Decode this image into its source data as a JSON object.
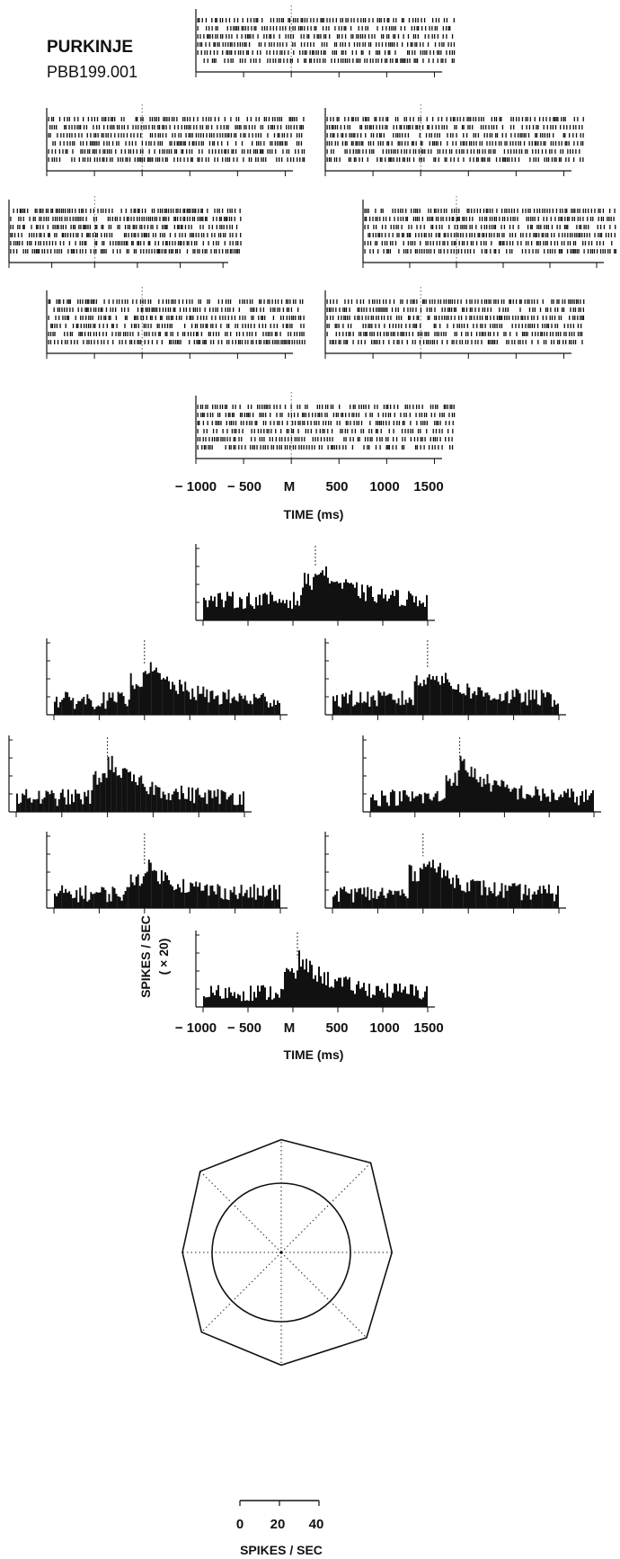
{
  "header": {
    "title": "PURKINJE",
    "cell_id": "PBB199.001"
  },
  "chart_data": [
    {
      "type": "raster",
      "xlabel": "TIME (ms)",
      "x_ticks": [
        "− 1000",
        "− 500",
        "M",
        "500",
        "1000",
        "1500"
      ],
      "x_tick_values": [
        -1000,
        -500,
        0,
        500,
        1000,
        1500
      ],
      "xlim": [
        -1000,
        1750
      ],
      "panels": [
        {
          "direction": "up",
          "trials": 6
        },
        {
          "direction": "up-left",
          "trials": 6
        },
        {
          "direction": "up-right",
          "trials": 6
        },
        {
          "direction": "left",
          "trials": 6
        },
        {
          "direction": "right",
          "trials": 6
        },
        {
          "direction": "down-left",
          "trials": 6
        },
        {
          "direction": "down-right",
          "trials": 6
        },
        {
          "direction": "down",
          "trials": 6
        }
      ]
    },
    {
      "type": "histogram",
      "xlabel": "TIME (ms)",
      "ylabel": "SPIKES / SEC",
      "ylabel_scale": "( × 20)",
      "x_ticks": [
        "− 1000",
        "− 500",
        "M",
        "500",
        "1000",
        "1500"
      ],
      "x_tick_values": [
        -1000,
        -500,
        0,
        500,
        1000,
        1500
      ],
      "xlim": [
        -1000,
        1500
      ],
      "panels": [
        {
          "direction": "up",
          "baseline": 1.4,
          "peak": 3.8,
          "peak_time_ms": 250
        },
        {
          "direction": "up-left",
          "baseline": 1.0,
          "peak": 3.5,
          "peak_time_ms": 0
        },
        {
          "direction": "up-right",
          "baseline": 1.1,
          "peak": 3.2,
          "peak_time_ms": 50
        },
        {
          "direction": "left",
          "baseline": 1.0,
          "peak": 3.6,
          "peak_time_ms": 0
        },
        {
          "direction": "right",
          "baseline": 1.0,
          "peak": 3.5,
          "peak_time_ms": 0
        },
        {
          "direction": "down-left",
          "baseline": 1.0,
          "peak": 3.0,
          "peak_time_ms": 0
        },
        {
          "direction": "down-right",
          "baseline": 1.0,
          "peak": 3.6,
          "peak_time_ms": 0
        },
        {
          "direction": "down",
          "baseline": 1.0,
          "peak": 3.4,
          "peak_time_ms": 50
        }
      ]
    },
    {
      "type": "polar",
      "scale_ticks": [
        "0",
        "20",
        "40"
      ],
      "scale_values": [
        0,
        20,
        40
      ],
      "xlabel": "SPIKES / SEC",
      "directions": [
        "up",
        "up-right",
        "right",
        "down-right",
        "down",
        "down-left",
        "left",
        "up-left"
      ],
      "values": [
        57,
        64,
        56,
        61,
        57,
        57,
        50,
        58
      ],
      "circle_value": 35
    }
  ]
}
